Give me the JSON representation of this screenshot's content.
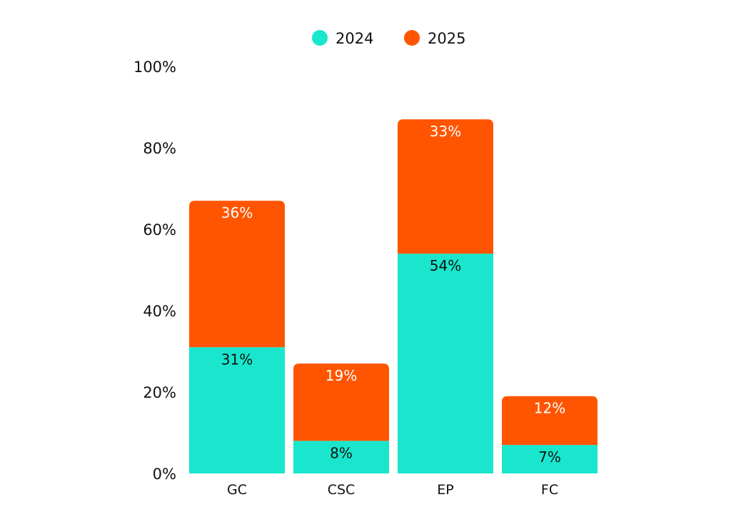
{
  "chart_data": {
    "type": "bar",
    "stacked": true,
    "categories": [
      "GC",
      "CSC",
      "EP",
      "FC"
    ],
    "series": [
      {
        "name": "2024",
        "values": [
          31,
          8,
          54,
          7
        ],
        "labels": [
          "31%",
          "8%",
          "54%",
          "7%"
        ],
        "color": "#19E6CC",
        "label_color": "#111111"
      },
      {
        "name": "2025",
        "values": [
          36,
          19,
          33,
          12
        ],
        "labels": [
          "36%",
          "19%",
          "33%",
          "12%"
        ],
        "color": "#FF5500",
        "label_color": "#FFFFFF"
      }
    ],
    "ylim": [
      0,
      100
    ],
    "yticks": [
      0,
      20,
      40,
      60,
      80,
      100
    ],
    "ytick_labels": [
      "0%",
      "20%",
      "40%",
      "60%",
      "80%",
      "100%"
    ],
    "legend_position": "top-center",
    "grid": false
  }
}
